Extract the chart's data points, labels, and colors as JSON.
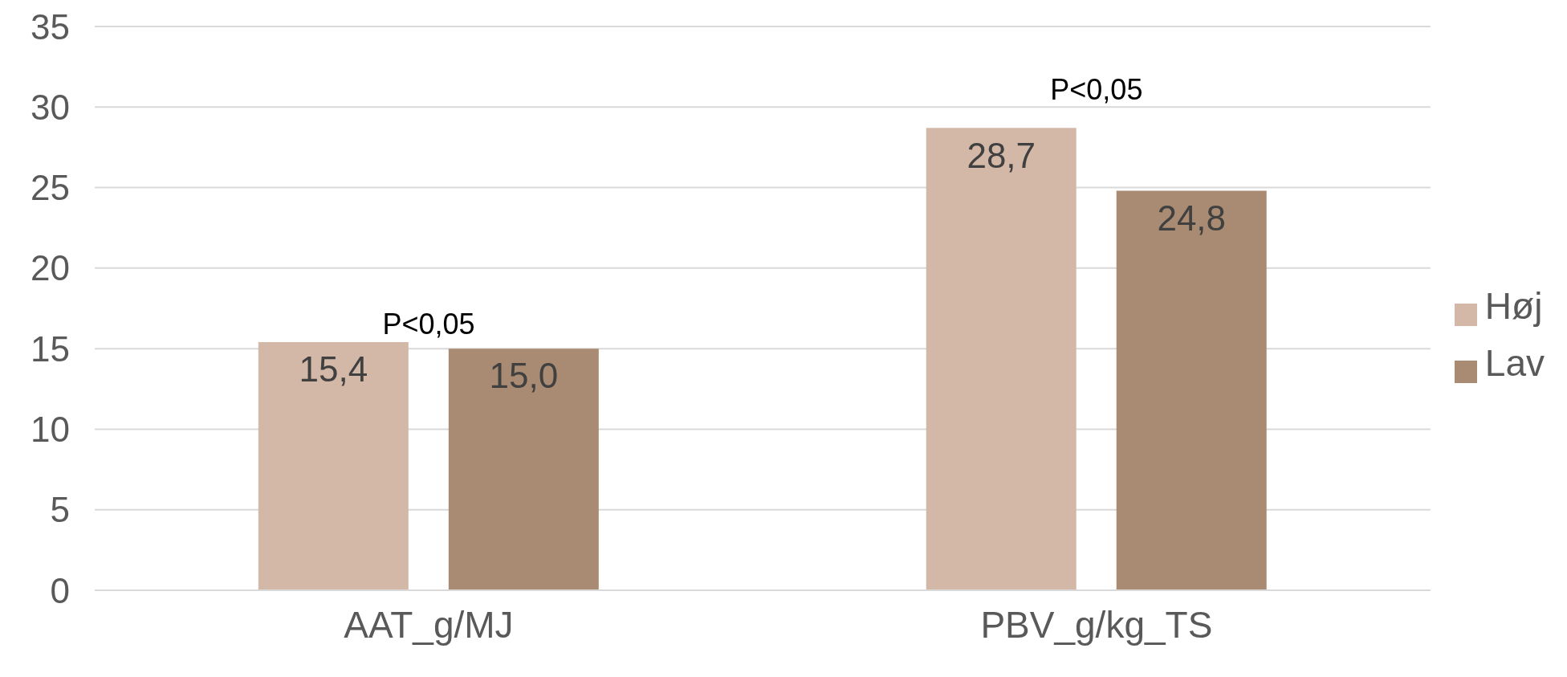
{
  "chart_data": {
    "type": "bar",
    "categories": [
      "AAT_g/MJ",
      "PBV_g/kg_TS"
    ],
    "series": [
      {
        "name": "Høj",
        "color": "#d3b8a8",
        "values": [
          15.4,
          28.7
        ],
        "value_labels": [
          "15,4",
          "28,7"
        ]
      },
      {
        "name": "Lav",
        "color": "#a88b72",
        "values": [
          15.0,
          24.8
        ],
        "value_labels": [
          "15,0",
          "24,8"
        ]
      }
    ],
    "ylim": [
      0,
      35
    ],
    "yticks": [
      0,
      5,
      10,
      15,
      20,
      25,
      30,
      35
    ],
    "grid": "y",
    "legend": "right",
    "annotations": [
      "P<0,05",
      "P<0,05"
    ]
  }
}
